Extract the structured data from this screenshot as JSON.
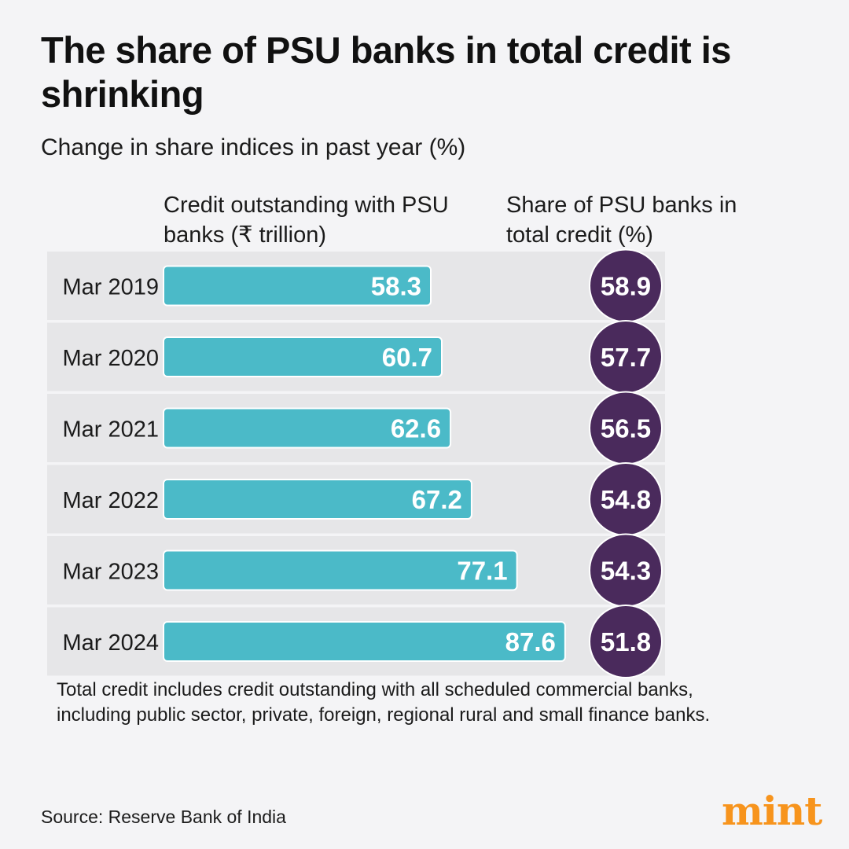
{
  "header": {
    "title": "The share of PSU banks in total credit is shrinking",
    "subtitle": "Change in share indices in past year (%)"
  },
  "columns": {
    "bars_header": "Credit outstanding with PSU banks (₹ trillion)",
    "share_header": "Share of PSU banks in total credit (%)"
  },
  "colors": {
    "bar": "#4bbac8",
    "bar_stroke": "#ffffff",
    "circle": "#4a2a5c",
    "row_band": "#e6e6e8",
    "background": "#f4f4f6",
    "brand": "#f7941d"
  },
  "chart_data": {
    "type": "bar",
    "orientation": "horizontal",
    "categories": [
      "Mar 2019",
      "Mar 2020",
      "Mar 2021",
      "Mar 2022",
      "Mar 2023",
      "Mar 2024"
    ],
    "series": [
      {
        "name": "Credit outstanding with PSU banks (₹ trillion)",
        "values": [
          58.3,
          60.7,
          62.6,
          67.2,
          77.1,
          87.6
        ]
      },
      {
        "name": "Share of PSU banks in total credit (%)",
        "values": [
          58.9,
          57.7,
          56.5,
          54.8,
          54.3,
          51.8
        ]
      }
    ],
    "xlim": [
      0,
      90
    ]
  },
  "footer": {
    "note": "Total credit includes credit outstanding with all scheduled commercial banks, including public sector, private, foreign, regional rural and small finance banks.",
    "source": "Source: Reserve Bank of India",
    "logo": "mint"
  }
}
